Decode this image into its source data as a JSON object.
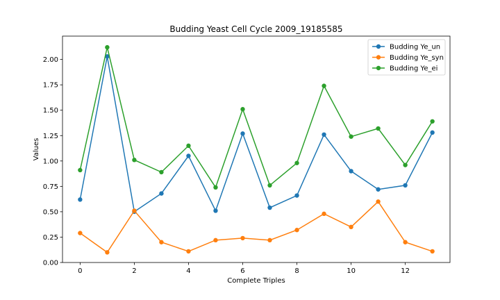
{
  "chart_data": {
    "type": "line",
    "title": "Budding Yeast Cell Cycle 2009_19185585",
    "xlabel": "Complete Triples",
    "ylabel": "Values",
    "x": [
      0,
      1,
      2,
      3,
      4,
      5,
      6,
      7,
      8,
      9,
      10,
      11,
      12,
      13
    ],
    "xlim": [
      -0.65,
      13.65
    ],
    "ylim": [
      0,
      2.23
    ],
    "xticks": [
      0,
      2,
      4,
      6,
      8,
      10,
      12
    ],
    "yticks": [
      0.0,
      0.25,
      0.5,
      0.75,
      1.0,
      1.25,
      1.5,
      1.75,
      2.0
    ],
    "ytick_labels": [
      "0.00",
      "0.25",
      "0.50",
      "0.75",
      "1.00",
      "1.25",
      "1.50",
      "1.75",
      "2.00"
    ],
    "grid": false,
    "legend_position": "top-right",
    "series": [
      {
        "name": "Budding Ye_un",
        "color": "#1f77b4",
        "values": [
          0.62,
          2.03,
          0.5,
          0.68,
          1.05,
          0.51,
          1.27,
          0.54,
          0.66,
          1.26,
          0.9,
          0.72,
          0.76,
          1.28
        ]
      },
      {
        "name": "Budding Ye_syn",
        "color": "#ff7f0e",
        "values": [
          0.29,
          0.1,
          0.51,
          0.2,
          0.11,
          0.22,
          0.24,
          0.22,
          0.32,
          0.48,
          0.35,
          0.6,
          0.2,
          0.11
        ]
      },
      {
        "name": "Budding Ye_ei",
        "color": "#2ca02c",
        "values": [
          0.91,
          2.12,
          1.01,
          0.89,
          1.15,
          0.74,
          1.51,
          0.76,
          0.98,
          1.74,
          1.24,
          1.32,
          0.96,
          1.39
        ]
      }
    ]
  }
}
